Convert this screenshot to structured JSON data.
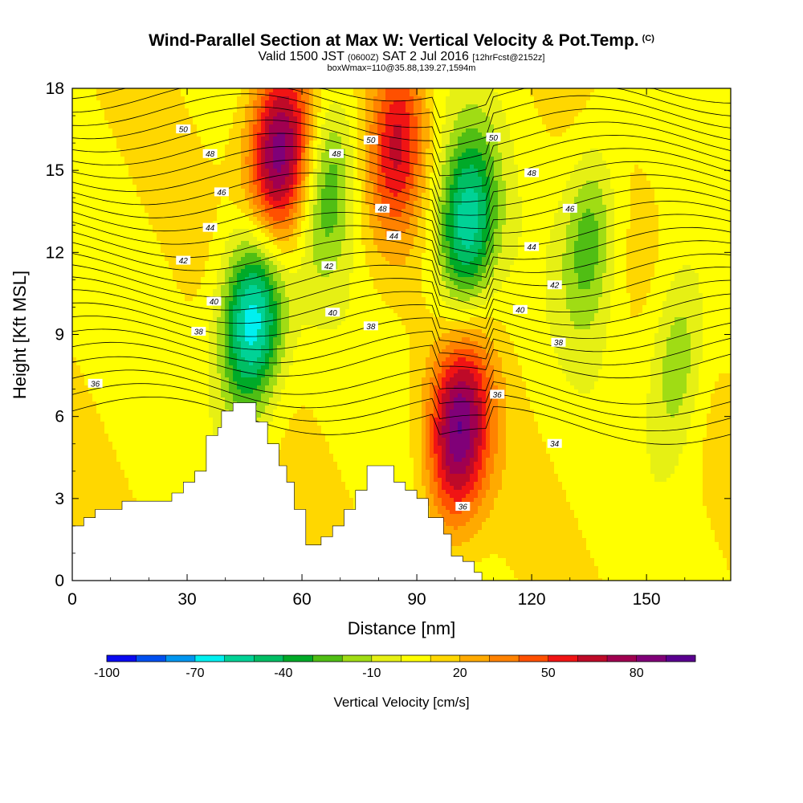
{
  "chart_data": {
    "type": "heatmap",
    "title": "Wind-Parallel Section at Max W: Vertical Velocity & Pot.Temp.",
    "title_mark": "(C)",
    "subtitle_main": "Valid 1500 JST",
    "subtitle_utc": "(0600Z)",
    "subtitle_date": "SAT 2 Jul 2016",
    "subtitle_run": "[12hrFcst@2152z]",
    "subtitle2": "boxWmax=110@35.88,139.27,1594m",
    "xlabel": "Distance [nm]",
    "ylabel": "Height [Kft MSL]",
    "xlim": [
      0,
      172
    ],
    "ylim": [
      0,
      18
    ],
    "xticks": [
      "0",
      "30",
      "60",
      "90",
      "120",
      "150"
    ],
    "yticks": [
      "0",
      "3",
      "6",
      "9",
      "12",
      "15",
      "18"
    ],
    "grid": false,
    "colorbar": {
      "title": "Vertical Velocity [cm/s]",
      "tick_labels": [
        "-100",
        "-70",
        "-40",
        "-10",
        "20",
        "50",
        "80"
      ],
      "levels": [
        -100,
        -90,
        -80,
        -70,
        -60,
        -50,
        -40,
        -30,
        -20,
        -10,
        0,
        10,
        20,
        30,
        40,
        50,
        60,
        70,
        80,
        90
      ],
      "colors": [
        "#0a0af0",
        "#0050f0",
        "#0096f0",
        "#00f0f0",
        "#00d296",
        "#00be64",
        "#00aa28",
        "#50be14",
        "#a0dc14",
        "#e6f014",
        "#ffff00",
        "#ffd700",
        "#ffaa00",
        "#ff8200",
        "#ff5000",
        "#f01414",
        "#be0a28",
        "#a00050",
        "#800078",
        "#5a0090"
      ]
    },
    "velocity_features": [
      {
        "x": 47,
        "y": 9.5,
        "value": -80
      },
      {
        "x": 54,
        "y": 15.5,
        "value": 85
      },
      {
        "x": 67,
        "y": 14.5,
        "value": -35
      },
      {
        "x": 85,
        "y": 16,
        "value": 50
      },
      {
        "x": 101,
        "y": 5.5,
        "value": 80
      },
      {
        "x": 103,
        "y": 13,
        "value": -65
      },
      {
        "x": 135,
        "y": 12.5,
        "value": -35
      },
      {
        "x": 158,
        "y": 8,
        "value": -30
      }
    ],
    "terrain": [
      [
        0,
        2
      ],
      [
        3,
        2
      ],
      [
        3,
        2.3
      ],
      [
        6,
        2.3
      ],
      [
        6,
        2.6
      ],
      [
        13,
        2.6
      ],
      [
        13,
        2.9
      ],
      [
        26,
        2.9
      ],
      [
        26,
        3.2
      ],
      [
        29,
        3.2
      ],
      [
        29,
        3.6
      ],
      [
        32,
        3.6
      ],
      [
        32,
        4
      ],
      [
        35,
        4
      ],
      [
        35,
        5.3
      ],
      [
        38,
        5.3
      ],
      [
        38,
        5.6
      ],
      [
        39,
        5.6
      ],
      [
        39,
        6.2
      ],
      [
        42,
        6.2
      ],
      [
        42,
        6.5
      ],
      [
        48,
        6.5
      ],
      [
        48,
        5.8
      ],
      [
        51,
        5.8
      ],
      [
        51,
        5
      ],
      [
        54,
        5
      ],
      [
        54,
        4.2
      ],
      [
        56,
        4.2
      ],
      [
        56,
        3.6
      ],
      [
        58,
        3.6
      ],
      [
        58,
        2.6
      ],
      [
        61,
        2.6
      ],
      [
        61,
        1.3
      ],
      [
        65,
        1.3
      ],
      [
        65,
        1.6
      ],
      [
        68,
        1.6
      ],
      [
        68,
        2
      ],
      [
        71,
        2
      ],
      [
        71,
        2.6
      ],
      [
        74,
        2.6
      ],
      [
        74,
        3.3
      ],
      [
        77,
        3.3
      ],
      [
        77,
        4.2
      ],
      [
        84,
        4.2
      ],
      [
        84,
        3.6
      ],
      [
        87,
        3.6
      ],
      [
        87,
        3.3
      ],
      [
        90,
        3.3
      ],
      [
        90,
        3
      ],
      [
        93,
        3
      ],
      [
        93,
        2.3
      ],
      [
        97,
        2.3
      ],
      [
        97,
        1.7
      ],
      [
        99,
        1.7
      ],
      [
        99,
        0.9
      ],
      [
        102,
        0.9
      ],
      [
        102,
        0.7
      ],
      [
        105,
        0.7
      ],
      [
        105,
        0.3
      ],
      [
        107,
        0.3
      ],
      [
        107,
        0
      ]
    ],
    "contour_labels": [
      {
        "x": 29,
        "y": 16.5,
        "text": "50"
      },
      {
        "x": 36,
        "y": 15.6,
        "text": "48"
      },
      {
        "x": 39,
        "y": 14.2,
        "text": "46"
      },
      {
        "x": 36,
        "y": 12.9,
        "text": "44"
      },
      {
        "x": 29,
        "y": 11.7,
        "text": "42"
      },
      {
        "x": 37,
        "y": 10.2,
        "text": "40"
      },
      {
        "x": 33,
        "y": 9.1,
        "text": "38"
      },
      {
        "x": 6,
        "y": 7.2,
        "text": "36"
      },
      {
        "x": 67,
        "y": 11.5,
        "text": "42"
      },
      {
        "x": 68,
        "y": 9.8,
        "text": "40"
      },
      {
        "x": 78,
        "y": 9.3,
        "text": "38"
      },
      {
        "x": 69,
        "y": 15.6,
        "text": "48"
      },
      {
        "x": 78,
        "y": 16.1,
        "text": "50"
      },
      {
        "x": 81,
        "y": 13.6,
        "text": "48"
      },
      {
        "x": 84,
        "y": 12.6,
        "text": "44"
      },
      {
        "x": 110,
        "y": 16.2,
        "text": "50"
      },
      {
        "x": 120,
        "y": 14.9,
        "text": "48"
      },
      {
        "x": 130,
        "y": 13.6,
        "text": "46"
      },
      {
        "x": 120,
        "y": 12.2,
        "text": "44"
      },
      {
        "x": 126,
        "y": 10.8,
        "text": "42"
      },
      {
        "x": 117,
        "y": 9.9,
        "text": "40"
      },
      {
        "x": 127,
        "y": 8.7,
        "text": "38"
      },
      {
        "x": 111,
        "y": 6.8,
        "text": "36"
      },
      {
        "x": 126,
        "y": 5,
        "text": "34"
      },
      {
        "x": 102,
        "y": 2.7,
        "text": "36"
      }
    ]
  }
}
